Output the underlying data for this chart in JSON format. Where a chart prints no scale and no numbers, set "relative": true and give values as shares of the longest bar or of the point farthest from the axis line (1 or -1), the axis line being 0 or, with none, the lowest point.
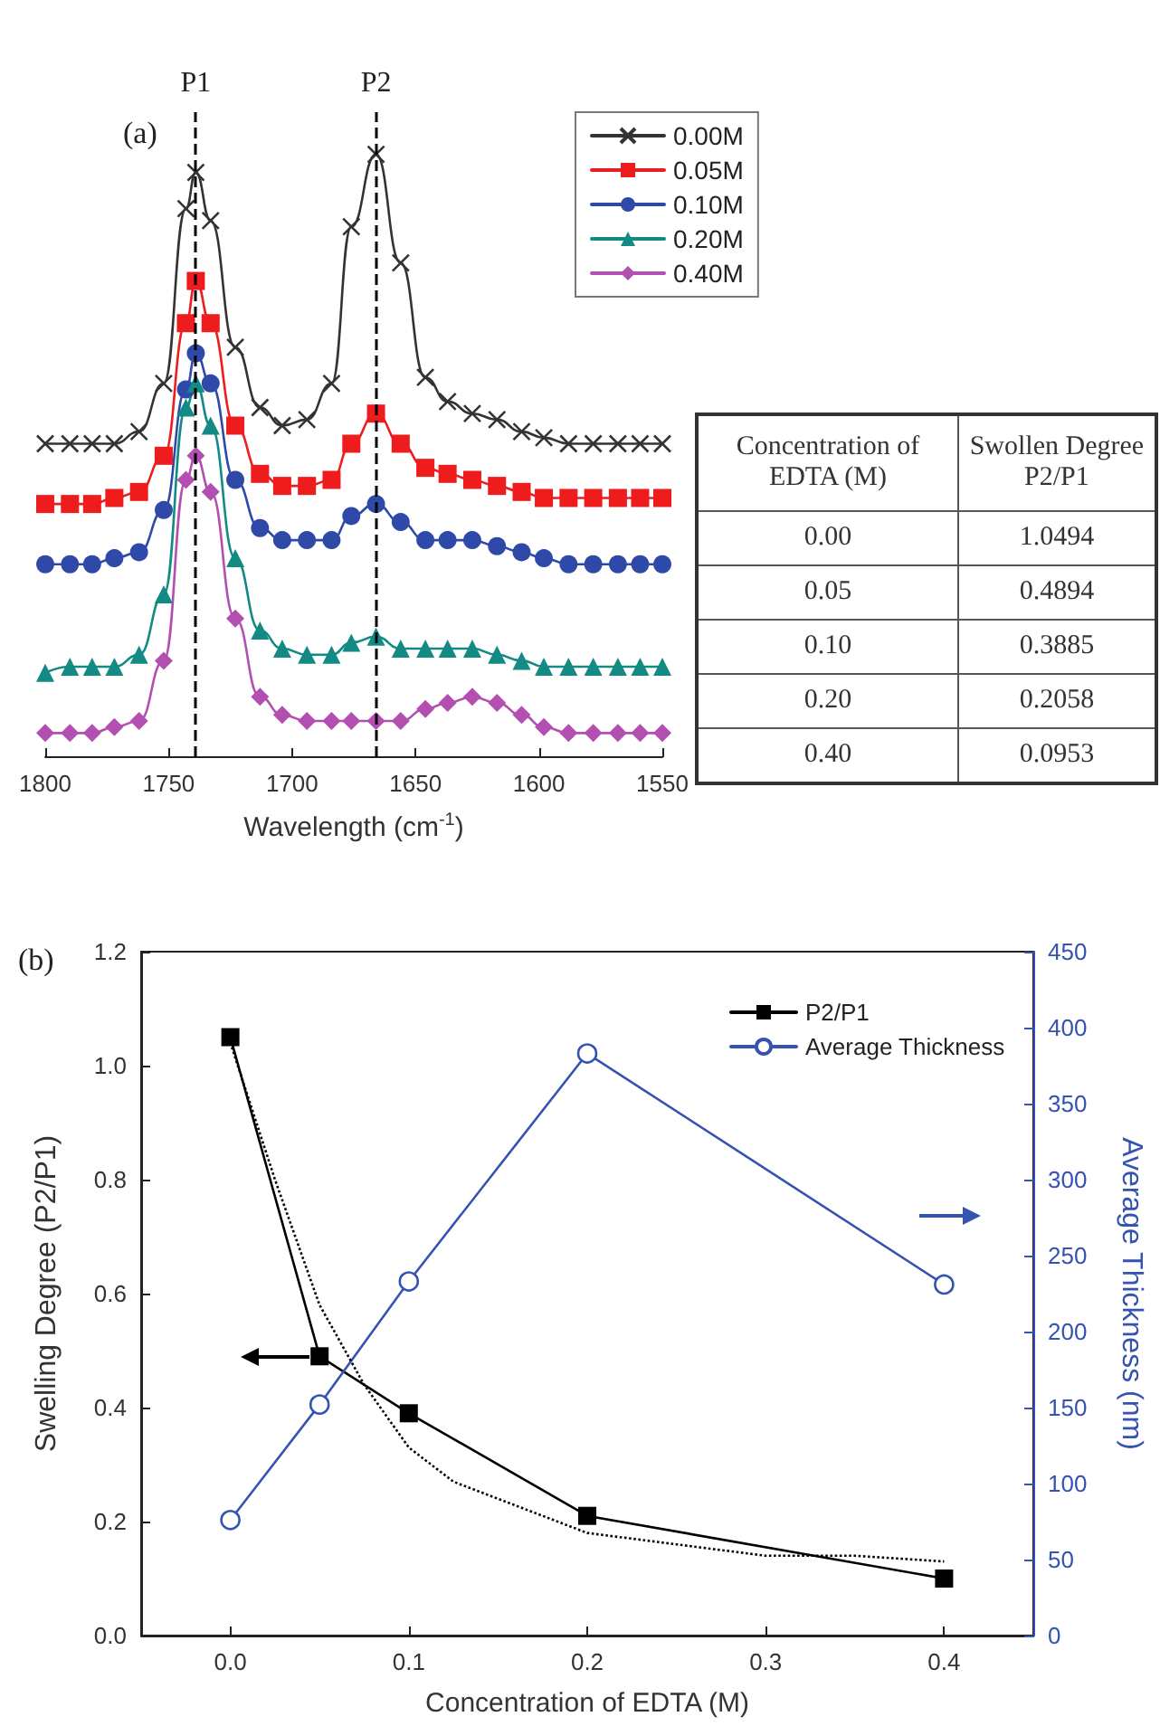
{
  "chart_data": [
    {
      "type": "line",
      "xlabel": "Wavelength (cm$^{-1}$)",
      "relative": true,
      "tick_labels": "x",
      "legend": "top right",
      "grid": false,
      "annotations": [
        "(a)"
      ],
      "xlim": [
        1800,
        1550
      ],
      "xticks": [
        1800,
        1750,
        1700,
        1650,
        1600,
        1550
      ],
      "x": [
        1800,
        1790,
        1781,
        1772,
        1762,
        1752,
        1743,
        1739,
        1733,
        1723,
        1713,
        1704,
        1694,
        1684,
        1676,
        1666,
        1656,
        1646,
        1637,
        1627,
        1617,
        1607,
        1598,
        1588,
        1578,
        1568,
        1559,
        1550
      ],
      "ref_lines": [
        {
          "axis": "x",
          "value": 1739,
          "label": "P1",
          "color": "#000000",
          "line_style": "dashed"
        },
        {
          "axis": "x",
          "value": 1666,
          "label": "P2",
          "color": "#000000",
          "line_style": "dashed"
        }
      ],
      "series": [
        {
          "name": "0.00M",
          "color": "#333333",
          "marker": "cross",
          "values": [
            0.52,
            0.52,
            0.52,
            0.52,
            0.54,
            0.62,
            0.91,
            0.97,
            0.89,
            0.68,
            0.58,
            0.55,
            0.56,
            0.62,
            0.88,
            1.0,
            0.82,
            0.63,
            0.59,
            0.57,
            0.56,
            0.54,
            0.53,
            0.52,
            0.52,
            0.52,
            0.52,
            0.52
          ]
        },
        {
          "name": "0.05M",
          "color": "#ee1c1c",
          "marker": "square",
          "values": [
            0.42,
            0.42,
            0.42,
            0.43,
            0.44,
            0.5,
            0.72,
            0.79,
            0.72,
            0.55,
            0.47,
            0.45,
            0.45,
            0.46,
            0.52,
            0.57,
            0.52,
            0.48,
            0.47,
            0.46,
            0.45,
            0.44,
            0.43,
            0.43,
            0.43,
            0.43,
            0.43,
            0.43
          ]
        },
        {
          "name": "0.10M",
          "color": "#2f49a8",
          "marker": "circle",
          "values": [
            0.32,
            0.32,
            0.32,
            0.33,
            0.34,
            0.41,
            0.61,
            0.67,
            0.62,
            0.46,
            0.38,
            0.36,
            0.36,
            0.36,
            0.4,
            0.42,
            0.39,
            0.36,
            0.36,
            0.36,
            0.35,
            0.34,
            0.33,
            0.32,
            0.32,
            0.32,
            0.32,
            0.32
          ]
        },
        {
          "name": "0.20M",
          "color": "#138a84",
          "marker": "triangle",
          "values": [
            0.14,
            0.15,
            0.15,
            0.15,
            0.17,
            0.27,
            0.58,
            0.62,
            0.55,
            0.33,
            0.21,
            0.18,
            0.17,
            0.17,
            0.19,
            0.2,
            0.18,
            0.18,
            0.18,
            0.18,
            0.17,
            0.16,
            0.15,
            0.15,
            0.15,
            0.15,
            0.15,
            0.15
          ]
        },
        {
          "name": "0.40M",
          "color": "#b24fb0",
          "marker": "diamond",
          "values": [
            0.04,
            0.04,
            0.04,
            0.05,
            0.06,
            0.16,
            0.46,
            0.5,
            0.44,
            0.23,
            0.1,
            0.07,
            0.06,
            0.06,
            0.06,
            0.06,
            0.06,
            0.08,
            0.09,
            0.1,
            0.09,
            0.07,
            0.05,
            0.04,
            0.04,
            0.04,
            0.04,
            0.04
          ]
        }
      ]
    },
    {
      "type": "other",
      "xlabel": "Concentration of EDTA (M)",
      "ylabel": "Swollen Degree P2/P1",
      "data_labels": true,
      "categories": [
        "0.00",
        "0.05",
        "0.10",
        "0.20",
        "0.40"
      ],
      "values": [
        1.0494,
        0.4894,
        0.3885,
        0.2058,
        0.0953
      ]
    },
    {
      "type": "line",
      "xlabel": "Concentration of EDTA (M)",
      "ylabel": "Swelling Degree (P2/P1)",
      "y2label": "Average Thickness (nm)",
      "legend": "top right",
      "grid": false,
      "annotations": [
        "(b)"
      ],
      "xlim": [
        -0.05,
        0.45
      ],
      "xticks": [
        {
          "value": 0,
          "label": "0.0"
        },
        0.1,
        0.2,
        0.3,
        0.4
      ],
      "ylim": [
        0,
        1.2
      ],
      "yticks": [
        {
          "value": 0,
          "label": "0.0"
        },
        0.2,
        0.4,
        0.6,
        0.8,
        {
          "value": 1,
          "label": "1.0"
        },
        1.2
      ],
      "y2lim": [
        0,
        450
      ],
      "y2ticks": [
        0,
        50,
        100,
        150,
        200,
        250,
        300,
        350,
        400,
        450
      ],
      "x": [
        0,
        0.05,
        0.1,
        0.2,
        0.4
      ],
      "series": [
        {
          "name": "P2/P1",
          "color": "#000000",
          "marker": "square",
          "line_style": "solid",
          "values": [
            1.05,
            0.49,
            0.39,
            0.21,
            0.1
          ]
        },
        {
          "name": "Average Thickness",
          "color": "#3553b0",
          "marker": "circle",
          "line_style": "solid",
          "axis": "y2",
          "values": [
            76,
            152,
            233,
            383,
            231
          ]
        },
        {
          "color": "#000000",
          "marker": "none",
          "line_style": "dotted",
          "x": [
            0,
            0.025,
            0.05,
            0.075,
            0.1,
            0.125,
            0.15,
            0.2,
            0.25,
            0.3,
            0.35,
            0.4
          ],
          "values": [
            1.04,
            0.8,
            0.58,
            0.44,
            0.33,
            0.27,
            0.24,
            0.18,
            0.16,
            0.14,
            0.14,
            0.13
          ]
        }
      ]
    }
  ]
}
